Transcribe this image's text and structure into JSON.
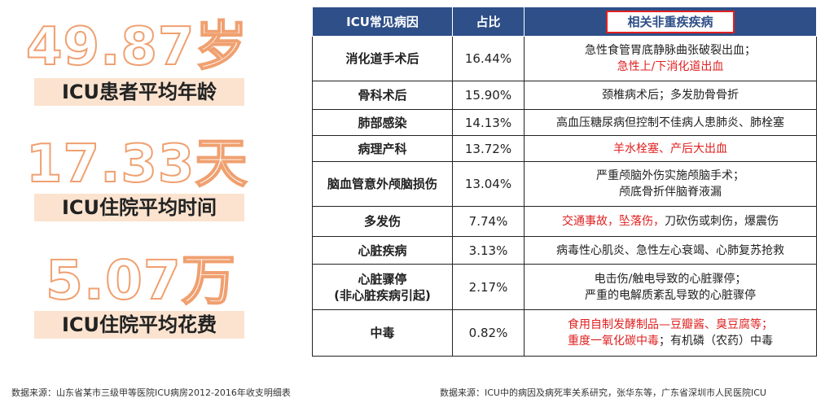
{
  "stats": [
    {
      "value": "49.87岁",
      "label": "ICU患者平均年龄"
    },
    {
      "value": "17.33天",
      "label": "ICU住院平均时间"
    },
    {
      "value": "5.07万",
      "label": "ICU住院平均花费"
    }
  ],
  "table": {
    "headers": [
      "ICU常见病因",
      "占比",
      "相关非重疾疾病"
    ],
    "rows": [
      {
        "name": [
          "消化道手术后"
        ],
        "pct": "16.44%",
        "desc": [
          {
            "text": "急性食管胃底静脉曲张破裂出血；",
            "red": false
          },
          {
            "text": "急性上/下消化道出血",
            "red": true
          }
        ]
      },
      {
        "name": [
          "骨科术后"
        ],
        "pct": "15.90%",
        "desc": [
          {
            "text": "颈椎病术后；多发肋骨骨折",
            "red": false
          }
        ]
      },
      {
        "name": [
          "肺部感染"
        ],
        "pct": "14.13%",
        "desc": [
          {
            "text": "高血压糖尿病但控制不佳病人患肺炎、肺栓塞",
            "red": false
          }
        ]
      },
      {
        "name": [
          "病理产科"
        ],
        "pct": "13.72%",
        "desc": [
          {
            "text": "羊水栓塞、产后大出血",
            "red": true
          }
        ]
      },
      {
        "name": [
          "脑血管意外颅脑损伤"
        ],
        "pct": "13.04%",
        "desc": [
          {
            "text": "严重颅脑外伤实施颅脑手术；",
            "red": false
          },
          {
            "text": "颅底骨折伴脑脊液漏",
            "red": false
          }
        ]
      },
      {
        "name": [
          "多发伤"
        ],
        "pct": "7.74%",
        "desc_inline": [
          {
            "text": "交通事故，坠落伤，",
            "red": true
          },
          {
            "text": "刀砍伤或刺伤，爆震伤",
            "red": false
          }
        ]
      },
      {
        "name": [
          "心脏疾病"
        ],
        "pct": "3.13%",
        "desc": [
          {
            "text": "病毒性心肌炎、急性左心衰竭、心肺复苏抢救",
            "red": false
          }
        ]
      },
      {
        "name": [
          "心脏骤停",
          "(非心脏疾病引起)"
        ],
        "pct": "2.17%",
        "desc": [
          {
            "text": "电击伤/触电导致的心脏骤停；",
            "red": false
          },
          {
            "text": "严重的电解质紊乱导致的心脏骤停",
            "red": false
          }
        ]
      },
      {
        "name": [
          "中毒"
        ],
        "pct": "0.82%",
        "desc": [
          {
            "text": "食用自制发酵制品—豆瓣酱、臭豆腐等；",
            "red": true
          }
        ],
        "desc_mixed": [
          {
            "text": "重度一氧化碳中毒",
            "red": true
          },
          {
            "text": "；有机磷（农药）中毒",
            "red": false
          }
        ]
      }
    ]
  },
  "sources": {
    "left": "数据来源：山东省某市三级甲等医院ICU病房2012-2016年收支明细表",
    "right": "数据来源：ICU中的病因及病死率关系研究，张华东等，广东省深圳市人民医院ICU"
  }
}
